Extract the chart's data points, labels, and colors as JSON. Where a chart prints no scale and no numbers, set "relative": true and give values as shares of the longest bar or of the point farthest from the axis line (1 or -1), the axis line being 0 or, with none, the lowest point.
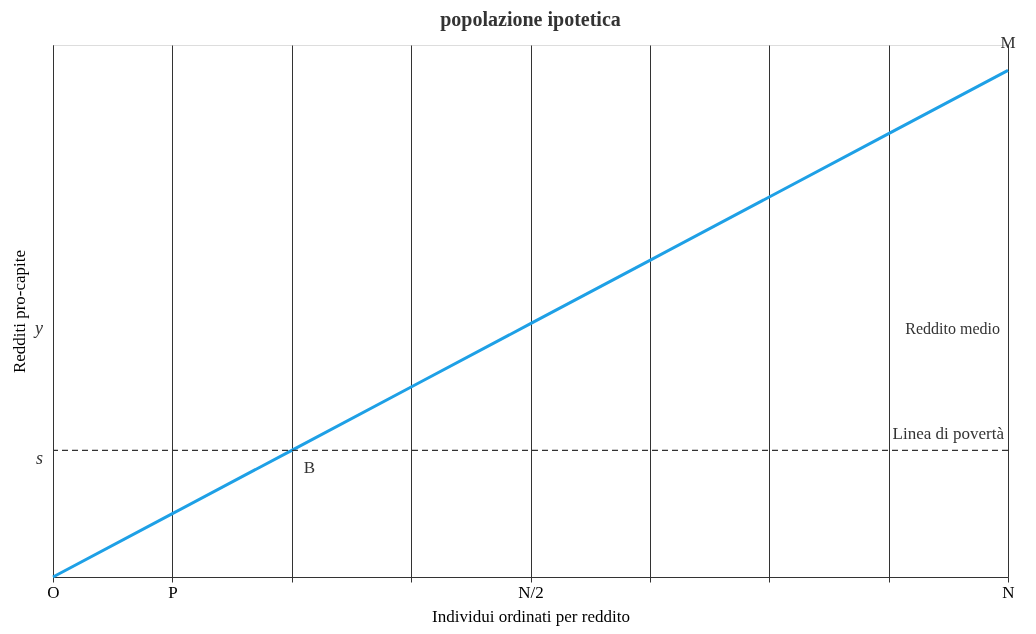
{
  "chart_data": {
    "type": "line",
    "title": "popolazione ipotetica",
    "xlabel": "Individui ordinati per reddito",
    "ylabel": "Redditi pro-capite",
    "relative": true,
    "categories": [
      "O",
      "P",
      null,
      null,
      "N/2",
      null,
      null,
      null,
      "N"
    ],
    "series": [
      {
        "color": "#1ea0e6",
        "values": [
          0,
          0.125,
          0.25,
          0.375,
          0.5,
          0.625,
          0.75,
          0.875,
          1
        ]
      }
    ],
    "line_style": "solid",
    "marker": "none",
    "grid": "x",
    "tick_labels": "x",
    "ref_lines": [
      {
        "axis": "y",
        "value": 0.25,
        "label": "Linea di povertà",
        "line_style": "dashed",
        "color": "#333333"
      }
    ],
    "annotations": [
      "s",
      "y",
      "Reddito medio",
      {
        "text": "B",
        "y": 0.25
      },
      "M"
    ]
  }
}
